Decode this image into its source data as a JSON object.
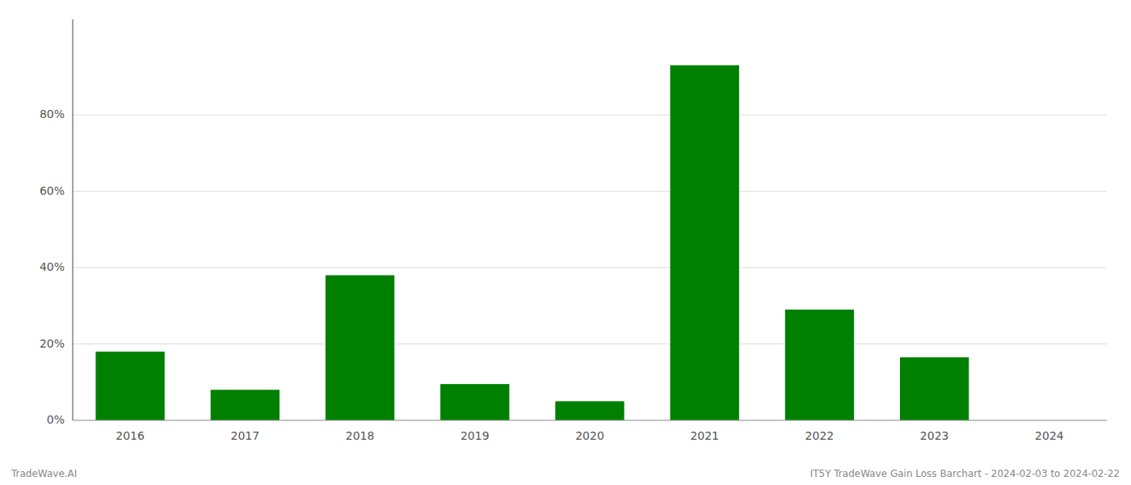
{
  "chart_data": {
    "type": "bar",
    "categories": [
      "2016",
      "2017",
      "2018",
      "2019",
      "2020",
      "2021",
      "2022",
      "2023",
      "2024"
    ],
    "values": [
      0.18,
      0.08,
      0.38,
      0.095,
      0.05,
      0.93,
      0.29,
      0.165,
      0.0
    ],
    "color": "#008000",
    "ylim": [
      0,
      1.05
    ],
    "yticks": [
      {
        "value": 0,
        "label": "0%"
      },
      {
        "value": 0.2,
        "label": "20%"
      },
      {
        "value": 0.4,
        "label": "40%"
      },
      {
        "value": 0.6,
        "label": "60%"
      },
      {
        "value": 0.8,
        "label": "80%"
      }
    ],
    "grid": true,
    "annotations": [
      "TradeWave.AI",
      "IT5Y TradeWave Gain Loss Barchart - 2024-02-03 to 2024-02-22"
    ]
  }
}
